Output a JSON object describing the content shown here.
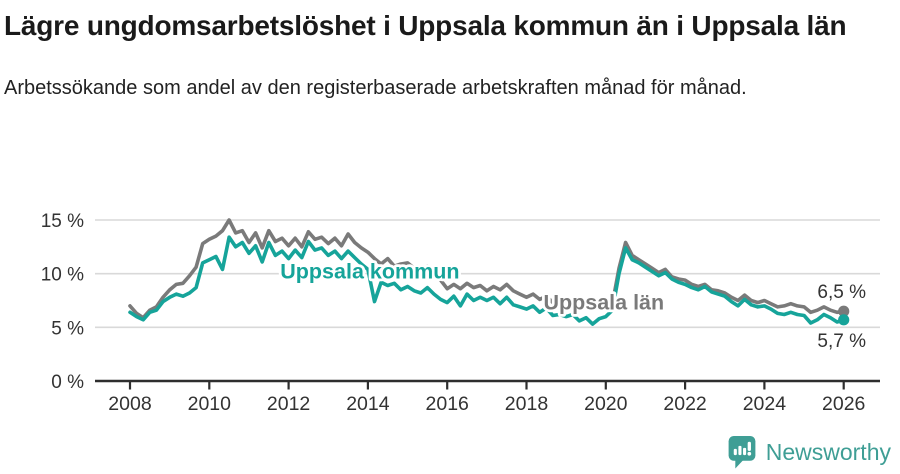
{
  "header": {
    "title": "Lägre ungdomsarbetslöshet i Uppsala kommun än i Uppsala län",
    "subtitle": "Arbetssökande som andel av den registerbaserade arbetskraften månad för månad."
  },
  "colors": {
    "kommun_teal": "#16A49A",
    "lan_gray": "#7A7A7A",
    "grid": "#D9D9D9",
    "axis": "#2E2E2E",
    "tick_text": "#333333",
    "value_label_text": "#333333",
    "brand_teal": "#3F9E95"
  },
  "chart_data": {
    "type": "line",
    "title": "Lägre ungdomsarbetslöshet i Uppsala kommun än i Uppsala län",
    "unit": "%",
    "x_start": 2008,
    "x_step_years": 0.1666667,
    "xlim": [
      2008,
      2026.9
    ],
    "ylim": [
      0,
      15
    ],
    "grid": "horizontal",
    "legend_position": "inline-labels",
    "x_tick_values": [
      2008,
      2010,
      2012,
      2014,
      2016,
      2018,
      2020,
      2022,
      2024,
      2026
    ],
    "x_tick_labels": [
      "2008",
      "2010",
      "2012",
      "2014",
      "2016",
      "2018",
      "2020",
      "2022",
      "2024",
      "2026"
    ],
    "y_tick_values": [
      0,
      5,
      10,
      15
    ],
    "y_tick_labels": [
      "0 %",
      "5 %",
      "10 %",
      "15 %"
    ],
    "series": [
      {
        "name": "Uppsala län",
        "color": "#7A7A7A",
        "label": "Uppsala län",
        "label_x": 2019.95,
        "label_y": 7.3,
        "end_label": "6,5 %",
        "end_label_side": "above",
        "values": [
          7.0,
          6.3,
          5.9,
          6.6,
          6.9,
          7.8,
          8.5,
          9.0,
          9.1,
          9.8,
          10.6,
          12.8,
          13.2,
          13.5,
          14.0,
          15.0,
          13.8,
          14.0,
          12.9,
          13.8,
          12.4,
          14.0,
          13.0,
          13.3,
          12.6,
          13.3,
          12.5,
          13.9,
          13.2,
          13.4,
          12.8,
          13.3,
          12.6,
          13.7,
          12.9,
          12.4,
          12.0,
          11.4,
          10.9,
          11.4,
          10.7,
          10.9,
          11.0,
          10.5,
          10.2,
          10.7,
          10.0,
          9.4,
          8.6,
          9.0,
          8.6,
          9.1,
          8.7,
          8.9,
          8.4,
          8.8,
          8.5,
          9.0,
          8.4,
          8.1,
          7.8,
          8.1,
          7.6,
          7.9,
          7.3,
          7.2,
          7.0,
          7.2,
          6.8,
          7.1,
          6.7,
          6.8,
          6.8,
          7.2,
          10.5,
          12.9,
          11.7,
          11.3,
          10.9,
          10.5,
          10.1,
          10.4,
          9.7,
          9.5,
          9.4,
          9.0,
          8.8,
          9.0,
          8.5,
          8.4,
          8.2,
          7.8,
          7.5,
          8.0,
          7.5,
          7.3,
          7.5,
          7.2,
          6.9,
          7.0,
          7.2,
          7.0,
          6.9,
          6.4,
          6.6,
          6.9,
          6.6,
          6.4,
          6.5
        ]
      },
      {
        "name": "Uppsala kommun",
        "color": "#16A49A",
        "label": "Uppsala kommun",
        "label_x": 2014.05,
        "label_y": 10.2,
        "end_label": "5,7 %",
        "end_label_side": "below",
        "values": [
          6.4,
          6.0,
          5.7,
          6.4,
          6.6,
          7.4,
          7.8,
          8.1,
          7.9,
          8.2,
          8.7,
          11.0,
          11.3,
          11.6,
          10.4,
          13.4,
          12.5,
          12.9,
          11.9,
          12.6,
          11.1,
          12.9,
          11.7,
          12.1,
          11.4,
          12.2,
          11.5,
          13.0,
          12.2,
          12.4,
          11.7,
          12.1,
          11.4,
          12.1,
          11.5,
          10.9,
          10.4,
          7.4,
          9.2,
          8.9,
          9.1,
          8.5,
          8.8,
          8.4,
          8.2,
          8.7,
          8.1,
          7.6,
          7.3,
          7.9,
          7.0,
          8.1,
          7.5,
          7.8,
          7.5,
          7.8,
          7.2,
          7.8,
          7.1,
          6.9,
          6.7,
          7.0,
          6.4,
          6.8,
          6.1,
          6.2,
          6.0,
          6.2,
          5.6,
          5.9,
          5.3,
          5.8,
          6.0,
          6.6,
          10.0,
          12.4,
          11.3,
          11.0,
          10.6,
          10.2,
          9.8,
          10.1,
          9.5,
          9.2,
          9.0,
          8.7,
          8.5,
          8.8,
          8.3,
          8.1,
          7.9,
          7.4,
          7.0,
          7.6,
          7.1,
          6.9,
          7.0,
          6.7,
          6.3,
          6.2,
          6.4,
          6.2,
          6.1,
          5.4,
          5.7,
          6.2,
          5.9,
          5.5,
          5.7
        ]
      }
    ]
  },
  "footer": {
    "brand": "Newsworthy"
  }
}
